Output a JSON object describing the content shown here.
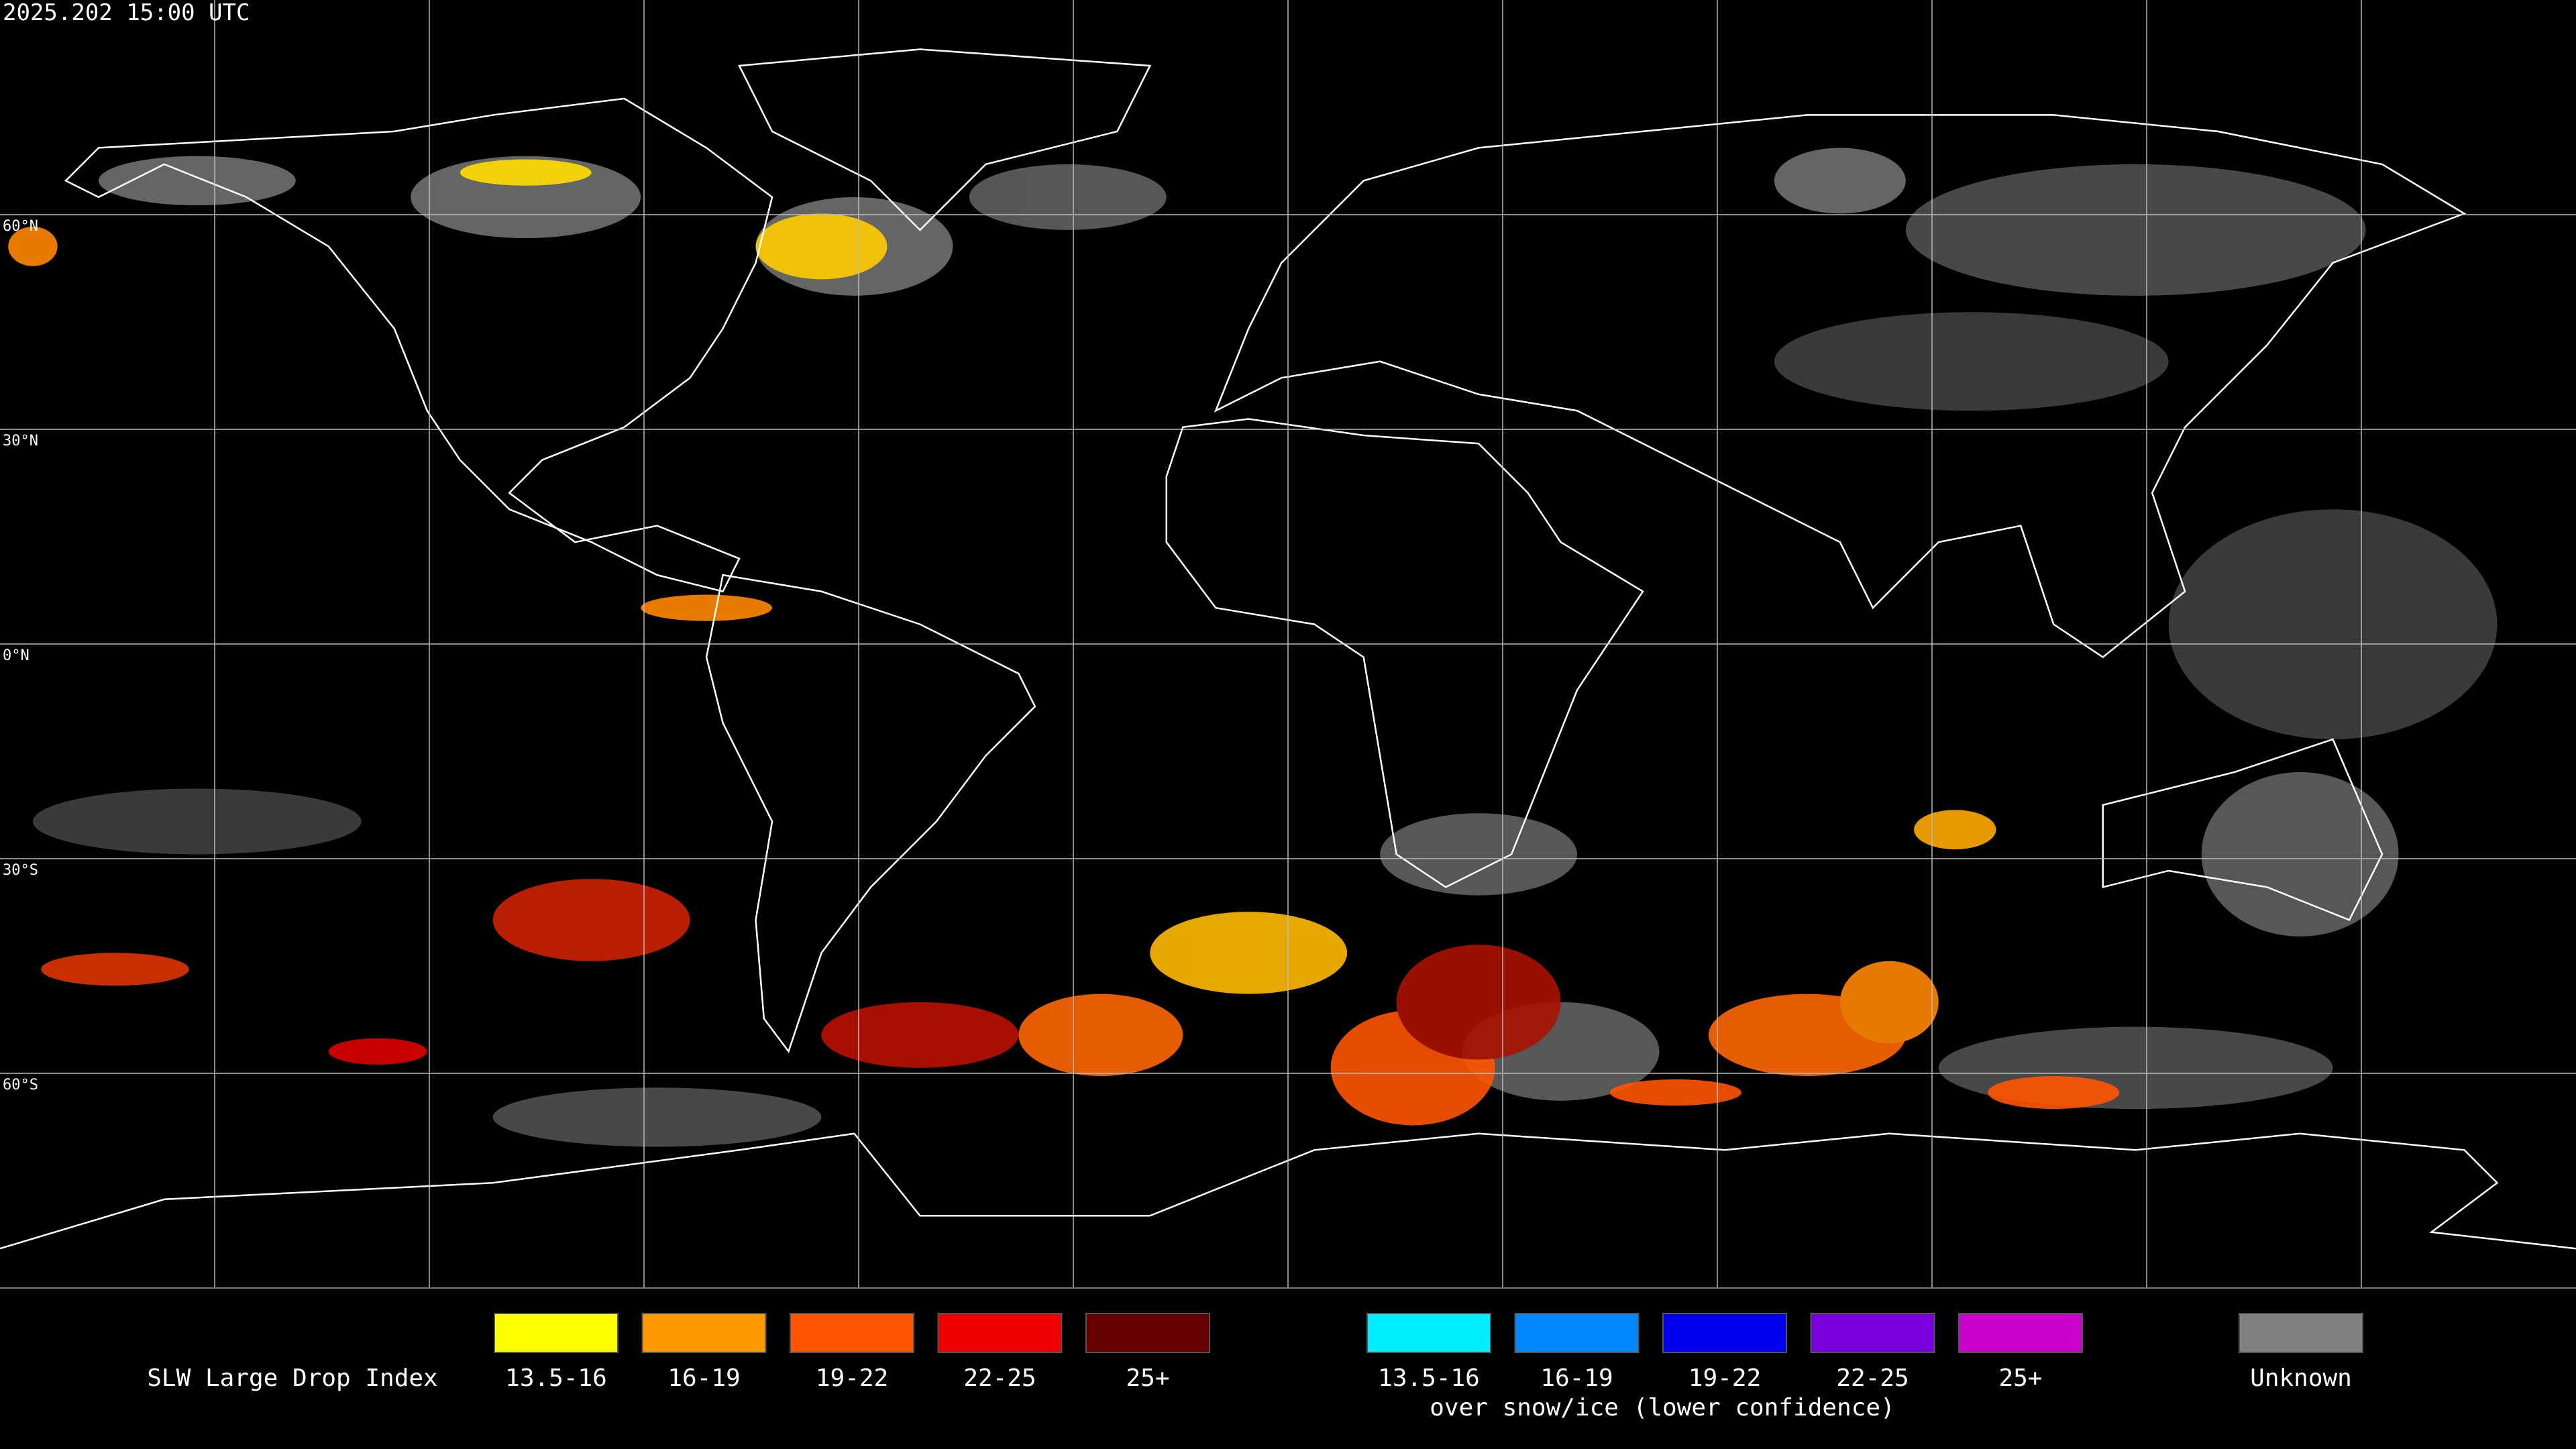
{
  "header": {
    "title": "2025.202 15:00 UTC"
  },
  "map": {
    "latitude_labels": [
      "60°N",
      "30°N",
      "0°N",
      "30°S",
      "60°S"
    ]
  },
  "legend": {
    "title": "SLW Large Drop Index",
    "items": [
      {
        "label": "13.5-16",
        "color": "#ffff00"
      },
      {
        "label": "16-19",
        "color": "#ff9900"
      },
      {
        "label": "19-22",
        "color": "#ff5500"
      },
      {
        "label": "22-25",
        "color": "#ee0000"
      },
      {
        "label": "25+",
        "color": "#660000"
      }
    ],
    "snow_items": [
      {
        "label": "13.5-16",
        "color": "#00eeff"
      },
      {
        "label": "16-19",
        "color": "#0088ff"
      },
      {
        "label": "19-22",
        "color": "#0000ee"
      },
      {
        "label": "22-25",
        "color": "#7700dd"
      },
      {
        "label": "25+",
        "color": "#cc00cc"
      }
    ],
    "snow_caption": "over snow/ice (lower confidence)",
    "unknown": {
      "label": "Unknown",
      "color": "#808080"
    }
  }
}
